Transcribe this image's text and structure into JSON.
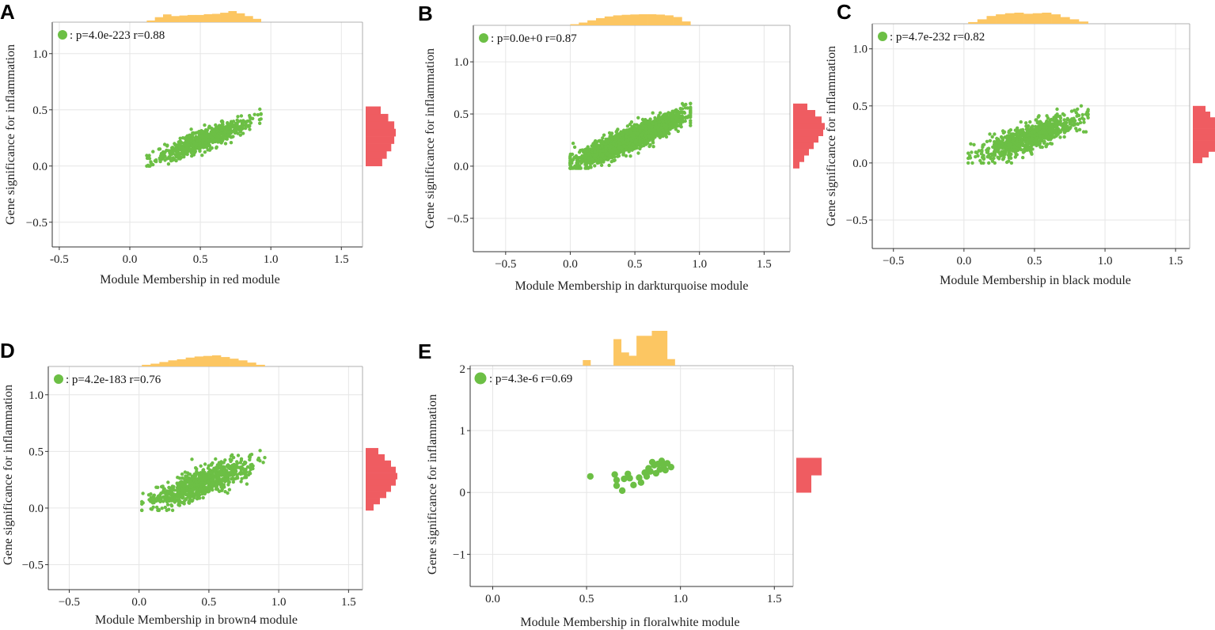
{
  "figure": {
    "panel_count": 5
  },
  "chart_data": [
    {
      "type": "scatter",
      "panel": "A",
      "xlabel": "Module Membership in red module",
      "ylabel": "Gene significance for inflammation",
      "legend": ": p=4.0e-223 r=0.88",
      "xlim": [
        -0.55,
        1.65
      ],
      "ylim": [
        -0.72,
        1.28
      ],
      "xticks": [
        -0.5,
        0.0,
        0.5,
        1.0,
        1.5
      ],
      "xtick_labels": [
        "-0.5",
        "0.0",
        "0.5",
        "1.0",
        "1.5"
      ],
      "yticks": [
        -0.5,
        0.0,
        0.5,
        1.0
      ],
      "ytick_labels": [
        "−0.5",
        "0.0",
        "0.5",
        "1.0"
      ],
      "n_points": 700,
      "x_range": [
        0.12,
        0.93
      ],
      "y_center": [
        0.04,
        0.43
      ],
      "spread": 0.045,
      "point_color": "#6cbf45",
      "hist_x_color": "#fcc662",
      "hist_y_color": "#ef5c61",
      "hist_x": [
        0.15,
        0.45,
        0.7,
        0.55,
        0.6,
        0.65,
        0.65,
        0.72,
        0.75,
        0.85,
        1.0,
        0.8,
        0.55,
        0.3
      ],
      "hist_y": [
        0.55,
        0.7,
        0.85,
        0.95,
        1.0,
        0.95,
        0.75,
        0.5
      ]
    },
    {
      "type": "scatter",
      "panel": "B",
      "xlabel": "Module Membership in darkturquoise module",
      "ylabel": "Gene significance for inflammation",
      "legend": ": p=0.0e+0 r=0.87",
      "xlim": [
        -0.75,
        1.7
      ],
      "ylim": [
        -0.82,
        1.35
      ],
      "xticks": [
        -0.5,
        0.0,
        0.5,
        1.0,
        1.5
      ],
      "xtick_labels": [
        "−0.5",
        "0.0",
        "0.5",
        "1.0",
        "1.5"
      ],
      "yticks": [
        -0.5,
        0.0,
        0.5,
        1.0
      ],
      "ytick_labels": [
        "−0.5",
        "0.0",
        "0.5",
        "1.0"
      ],
      "n_points": 2600,
      "x_range": [
        0.0,
        0.93
      ],
      "y_center": [
        0.02,
        0.5
      ],
      "spread": 0.05,
      "point_color": "#6cbf45",
      "hist_x_color": "#fcc662",
      "hist_y_color": "#ef5c61",
      "hist_x": [
        0.1,
        0.25,
        0.45,
        0.65,
        0.8,
        0.9,
        0.95,
        0.98,
        1.0,
        1.0,
        0.97,
        0.9,
        0.75,
        0.35
      ],
      "hist_y": [
        0.2,
        0.35,
        0.5,
        0.65,
        0.8,
        0.95,
        1.0,
        0.9,
        0.7,
        0.45
      ]
    },
    {
      "type": "scatter",
      "panel": "C",
      "xlabel": "Module Membership in black module",
      "ylabel": "Gene significance for inflammation",
      "legend": ": p=4.7e-232 r=0.82",
      "xlim": [
        -0.65,
        1.6
      ],
      "ylim": [
        -0.75,
        1.22
      ],
      "xticks": [
        -0.5,
        0.0,
        0.5,
        1.0,
        1.5
      ],
      "xtick_labels": [
        "−0.5",
        "0.0",
        "0.5",
        "1.0",
        "1.5"
      ],
      "yticks": [
        -0.5,
        0.0,
        0.5,
        1.0
      ],
      "ytick_labels": [
        "−0.5",
        "0.0",
        "0.5",
        "1.0"
      ],
      "n_points": 800,
      "x_range": [
        0.03,
        0.88
      ],
      "y_center": [
        0.04,
        0.4
      ],
      "spread": 0.055,
      "point_color": "#6cbf45",
      "hist_x_color": "#fcc662",
      "hist_y_color": "#ef5c61",
      "hist_x": [
        0.15,
        0.4,
        0.7,
        0.85,
        0.95,
        1.0,
        0.9,
        0.95,
        1.0,
        0.85,
        0.6,
        0.4,
        0.2
      ],
      "hist_y": [
        0.3,
        0.5,
        0.7,
        0.85,
        0.95,
        1.0,
        0.9,
        0.75,
        0.55,
        0.4
      ]
    },
    {
      "type": "scatter",
      "panel": "D",
      "xlabel": "Module Membership in brown4 module",
      "ylabel": "Gene significance for inflammation",
      "legend": ": p=4.2e-183 r=0.76",
      "xlim": [
        -0.65,
        1.6
      ],
      "ylim": [
        -0.72,
        1.25
      ],
      "xticks": [
        -0.5,
        0.0,
        0.5,
        1.0,
        1.5
      ],
      "xtick_labels": [
        "−0.5",
        "0.0",
        "0.5",
        "1.0",
        "1.5"
      ],
      "yticks": [
        -0.5,
        0.0,
        0.5,
        1.0
      ],
      "ytick_labels": [
        "−0.5",
        "0.0",
        "0.5",
        "1.0"
      ],
      "n_points": 850,
      "x_range": [
        0.02,
        0.9
      ],
      "y_center": [
        0.02,
        0.43
      ],
      "spread": 0.06,
      "point_color": "#6cbf45",
      "hist_x_color": "#fcc662",
      "hist_y_color": "#ef5c61",
      "hist_x": [
        0.15,
        0.25,
        0.4,
        0.55,
        0.65,
        0.8,
        0.9,
        0.95,
        1.0,
        0.85,
        0.7,
        0.55,
        0.35,
        0.15
      ],
      "hist_y": [
        0.25,
        0.45,
        0.65,
        0.8,
        0.95,
        1.0,
        0.95,
        0.8,
        0.6,
        0.4
      ]
    },
    {
      "type": "scatter",
      "panel": "E",
      "xlabel": "Module Membership in floralwhite module",
      "ylabel": "Gene significance for inflammation",
      "legend": ": p=4.3e-6 r=0.69",
      "xlim": [
        -0.12,
        1.6
      ],
      "ylim": [
        -1.52,
        2.05
      ],
      "xticks": [
        0.0,
        0.5,
        1.0,
        1.5
      ],
      "xtick_labels": [
        "0.0",
        "0.5",
        "1.0",
        "1.5"
      ],
      "yticks": [
        -1,
        0,
        1,
        2
      ],
      "ytick_labels": [
        "−1",
        "0",
        "1",
        "2"
      ],
      "point_color": "#6cbf45",
      "hist_x_color": "#fcc662",
      "hist_y_color": "#ef5c61",
      "points": [
        [
          0.52,
          0.26
        ],
        [
          0.65,
          0.29
        ],
        [
          0.66,
          0.2
        ],
        [
          0.66,
          0.11
        ],
        [
          0.69,
          0.03
        ],
        [
          0.7,
          0.22
        ],
        [
          0.73,
          0.23
        ],
        [
          0.72,
          0.3
        ],
        [
          0.75,
          0.12
        ],
        [
          0.78,
          0.24
        ],
        [
          0.79,
          0.16
        ],
        [
          0.81,
          0.32
        ],
        [
          0.82,
          0.26
        ],
        [
          0.83,
          0.39
        ],
        [
          0.84,
          0.34
        ],
        [
          0.85,
          0.49
        ],
        [
          0.86,
          0.44
        ],
        [
          0.87,
          0.31
        ],
        [
          0.88,
          0.46
        ],
        [
          0.89,
          0.37
        ],
        [
          0.9,
          0.51
        ],
        [
          0.91,
          0.43
        ],
        [
          0.92,
          0.36
        ],
        [
          0.93,
          0.47
        ],
        [
          0.95,
          0.41
        ]
      ],
      "marker": "large",
      "hist_x": [
        0.12,
        0,
        0,
        0,
        0.75,
        0.35,
        0.25,
        0.85,
        0.85,
        1.0,
        1.0,
        0.15
      ],
      "hist_y": [
        0.38,
        0.64
      ]
    }
  ]
}
